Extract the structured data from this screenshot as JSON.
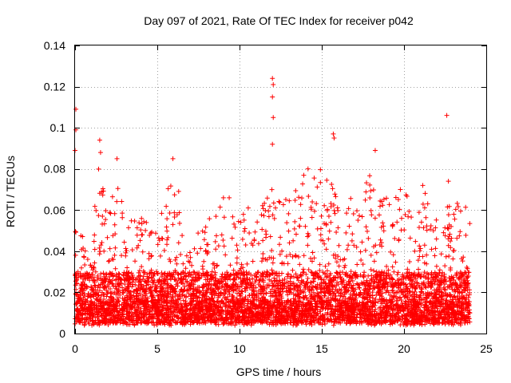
{
  "chart_data": {
    "type": "scatter",
    "title": "Day 097 of 2021, Rate Of TEC Index for receiver p042",
    "xlabel": "GPS time / hours",
    "ylabel": "ROTI / TECUs",
    "xlim": [
      0,
      25
    ],
    "ylim": [
      0,
      0.14
    ],
    "x_ticks": [
      0,
      5,
      10,
      15,
      20,
      25
    ],
    "x_tick_labels": [
      "0",
      "5",
      "10",
      "15",
      "20",
      "25"
    ],
    "y_ticks": [
      0,
      0.02,
      0.04,
      0.06,
      0.08,
      0.1,
      0.12,
      0.14
    ],
    "y_tick_labels": [
      "0",
      "0.02",
      "0.04",
      "0.06",
      "0.08",
      "0.1",
      "0.12",
      "0.14"
    ],
    "grid": true,
    "marker": "+",
    "marker_color": "#ff0000",
    "series": [
      {
        "name": "ROTI",
        "x_range": [
          0.0,
          24.0
        ],
        "typical_range": [
          0.005,
          0.03
        ],
        "notable_points": [
          {
            "x": 0.05,
            "y": 0.109
          },
          {
            "x": 0.05,
            "y": 0.099
          },
          {
            "x": 0.0,
            "y": 0.089
          },
          {
            "x": 1.5,
            "y": 0.094
          },
          {
            "x": 1.55,
            "y": 0.088
          },
          {
            "x": 2.55,
            "y": 0.085
          },
          {
            "x": 5.95,
            "y": 0.085
          },
          {
            "x": 12.0,
            "y": 0.124
          },
          {
            "x": 12.05,
            "y": 0.121
          },
          {
            "x": 12.0,
            "y": 0.115
          },
          {
            "x": 12.05,
            "y": 0.105
          },
          {
            "x": 12.0,
            "y": 0.092
          },
          {
            "x": 15.7,
            "y": 0.097
          },
          {
            "x": 15.75,
            "y": 0.095
          },
          {
            "x": 18.25,
            "y": 0.089
          },
          {
            "x": 22.6,
            "y": 0.106
          },
          {
            "x": 22.7,
            "y": 0.074
          }
        ],
        "envelope": [
          {
            "x": 0.0,
            "max": 0.05
          },
          {
            "x": 1.0,
            "max": 0.045
          },
          {
            "x": 1.5,
            "max": 0.088
          },
          {
            "x": 2.0,
            "max": 0.06
          },
          {
            "x": 2.5,
            "max": 0.074
          },
          {
            "x": 3.0,
            "max": 0.062
          },
          {
            "x": 3.5,
            "max": 0.07
          },
          {
            "x": 4.0,
            "max": 0.058
          },
          {
            "x": 5.0,
            "max": 0.05
          },
          {
            "x": 6.0,
            "max": 0.082
          },
          {
            "x": 7.0,
            "max": 0.045
          },
          {
            "x": 8.0,
            "max": 0.058
          },
          {
            "x": 9.0,
            "max": 0.07
          },
          {
            "x": 10.0,
            "max": 0.06
          },
          {
            "x": 11.0,
            "max": 0.068
          },
          {
            "x": 12.0,
            "max": 0.07
          },
          {
            "x": 13.0,
            "max": 0.065
          },
          {
            "x": 14.0,
            "max": 0.082
          },
          {
            "x": 15.0,
            "max": 0.08
          },
          {
            "x": 16.0,
            "max": 0.07
          },
          {
            "x": 17.0,
            "max": 0.068
          },
          {
            "x": 18.0,
            "max": 0.08
          },
          {
            "x": 19.0,
            "max": 0.065
          },
          {
            "x": 20.0,
            "max": 0.072
          },
          {
            "x": 21.0,
            "max": 0.075
          },
          {
            "x": 22.0,
            "max": 0.062
          },
          {
            "x": 23.0,
            "max": 0.062
          },
          {
            "x": 24.0,
            "max": 0.068
          }
        ]
      }
    ]
  }
}
